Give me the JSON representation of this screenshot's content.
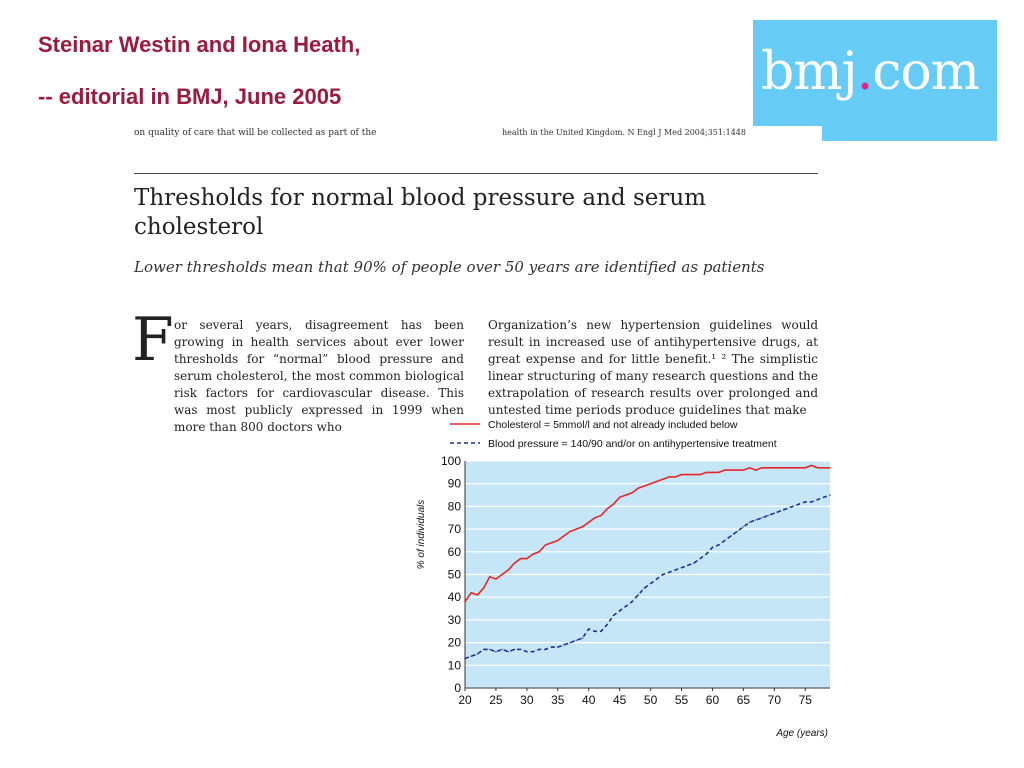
{
  "slide": {
    "title_line1": "Steinar Westin and Iona Heath,",
    "title_line2": "--  editorial in BMJ, June 2005"
  },
  "logo": {
    "text_before": "bmj",
    "dot": ".",
    "text_after": "com",
    "bg": "#66ccf5",
    "dot_color": "#e0248c"
  },
  "article": {
    "top_fragment_left": "on quality of care that will be collected as part of the",
    "top_fragment_right": "health in the United Kingdom. N Engl J Med 2004;351:1448",
    "title": "Thresholds for normal blood pressure and serum cholesterol",
    "subtitle": "Lower thresholds mean that 90% of people over 50 years are identified as patients",
    "dropcap": "F",
    "col1": "or several years, disagreement has been growing in health services about ever lower thresholds for “normal” blood pressure and serum cholesterol, the most common biological risk factors for cardiovascular disease. This was most publicly expressed in 1999 when more than 800 doctors who",
    "col2": "Organization’s new hypertension guidelines would result in increased use of antihypertensive drugs, at great expense and for little benefit.¹ ² The simplistic linear structuring of many research questions and the extrapolation of research results over prolonged and untested time periods produce guidelines that make"
  },
  "chart_data": {
    "type": "line",
    "xlabel": "Age (years)",
    "ylabel": "% of individuals",
    "xlim": [
      20,
      79
    ],
    "ylim": [
      0,
      100
    ],
    "xticks": [
      20,
      25,
      30,
      35,
      40,
      45,
      50,
      55,
      60,
      65,
      70,
      75
    ],
    "yticks": [
      0,
      10,
      20,
      30,
      40,
      50,
      60,
      70,
      80,
      90,
      100
    ],
    "plot_bg": "#c5e6f6",
    "grid": true,
    "legend_position": "top",
    "series": [
      {
        "name": "Cholesterol = 5mmol/l and not already included below",
        "color": "#e8262a",
        "dash": "solid",
        "x": [
          20,
          21,
          22,
          23,
          24,
          25,
          26,
          27,
          28,
          29,
          30,
          31,
          32,
          33,
          34,
          35,
          36,
          37,
          38,
          39,
          40,
          41,
          42,
          43,
          44,
          45,
          46,
          47,
          48,
          49,
          50,
          51,
          52,
          53,
          54,
          55,
          56,
          57,
          58,
          59,
          60,
          61,
          62,
          63,
          64,
          65,
          66,
          67,
          68,
          69,
          70,
          71,
          72,
          73,
          74,
          75,
          76,
          77,
          78,
          79
        ],
        "values": [
          38,
          42,
          41,
          44,
          49,
          48,
          50,
          52,
          55,
          57,
          57,
          59,
          60,
          63,
          64,
          65,
          67,
          69,
          70,
          71,
          73,
          75,
          76,
          79,
          81,
          84,
          85,
          86,
          88,
          89,
          90,
          91,
          92,
          93,
          93,
          94,
          94,
          94,
          94,
          95,
          95,
          95,
          96,
          96,
          96,
          96,
          97,
          96,
          97,
          97,
          97,
          97,
          97,
          97,
          97,
          97,
          98,
          97,
          97,
          97
        ]
      },
      {
        "name": "Blood pressure = 140/90 and/or on antihypertensive treatment",
        "color": "#1f2f9a",
        "dash": "dashed",
        "x": [
          20,
          21,
          22,
          23,
          24,
          25,
          26,
          27,
          28,
          29,
          30,
          31,
          32,
          33,
          34,
          35,
          36,
          37,
          38,
          39,
          40,
          41,
          42,
          43,
          44,
          45,
          46,
          47,
          48,
          49,
          50,
          51,
          52,
          53,
          54,
          55,
          56,
          57,
          58,
          59,
          60,
          61,
          62,
          63,
          64,
          65,
          66,
          67,
          68,
          69,
          70,
          71,
          72,
          73,
          74,
          75,
          76,
          77,
          78,
          79
        ],
        "values": [
          13,
          14,
          15,
          17,
          17,
          16,
          17,
          16,
          17,
          17,
          16,
          16,
          17,
          17,
          18,
          18,
          19,
          20,
          21,
          22,
          26,
          25,
          25,
          28,
          32,
          34,
          36,
          38,
          41,
          44,
          46,
          48,
          50,
          51,
          52,
          53,
          54,
          55,
          57,
          59,
          62,
          63,
          65,
          67,
          69,
          71,
          73,
          74,
          75,
          76,
          77,
          78,
          79,
          80,
          81,
          82,
          82,
          83,
          84,
          85
        ]
      }
    ]
  }
}
